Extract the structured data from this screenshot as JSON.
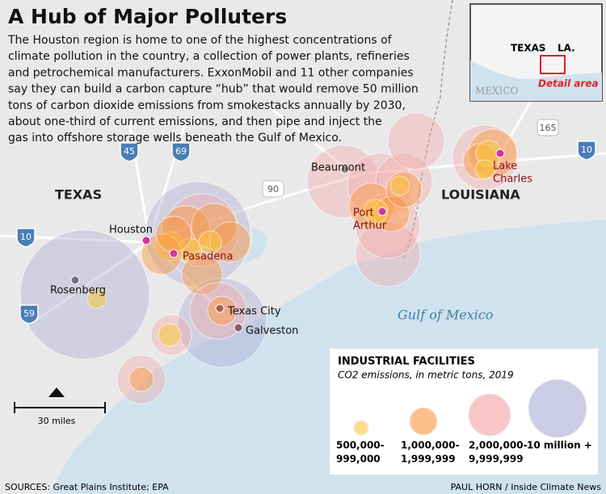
{
  "header": {
    "title": "A Hub of Major Polluters",
    "description": [
      "The Houston region is home to one of the highest concentrations of",
      "climate pollution in the country, a collection of power plants, refineries",
      "and petrochemical manufacturers. ExxonMobil and 11 other companies",
      "say they can build a carbon capture “hub” that would remove 50 million",
      "tons of carbon dioxide emissions from smokestacks annually by 2030,",
      "about one-third of current emissions, and then pipe and inject the",
      "gas into offshore storage wells beneath the Gulf of Mexico."
    ]
  },
  "map": {
    "regions": [
      "TEXAS",
      "LOUISIANA"
    ],
    "water": "Gulf of Mexico",
    "places": [
      {
        "label": [
          "Houston"
        ]
      },
      {
        "label": [
          "Pasadena"
        ]
      },
      {
        "label": [
          "Rosenberg"
        ]
      },
      {
        "label": [
          "Texas City"
        ]
      },
      {
        "label": [
          "Galveston"
        ]
      },
      {
        "label": [
          "Beaumont"
        ]
      },
      {
        "label": [
          "Port",
          "Arthur"
        ]
      },
      {
        "label": [
          "Lake",
          "Charles"
        ]
      }
    ],
    "highways": [
      "45",
      "69",
      "10",
      "59",
      "90",
      "165",
      "10"
    ],
    "scale": "30 miles"
  },
  "inset": {
    "labels": [
      "TEXAS",
      "LA.",
      "MEXICO"
    ],
    "detail": "Detail area"
  },
  "legend": {
    "title": "INDUSTRIAL FACILITIES",
    "subtitle": "CO2 emissions, in metric tons, 2019",
    "items": [
      {
        "label": [
          "500,000-",
          "999,000"
        ]
      },
      {
        "label": [
          "1,000,000-",
          "1,999,999"
        ]
      },
      {
        "label": [
          "2,000,000-",
          "9,999,999"
        ]
      },
      {
        "label": [
          "10 million +"
        ]
      }
    ]
  },
  "footer": {
    "sources": "SOURCES: Great Plains Institute; EPA",
    "credit": "PAUL HORN / Inside Climate News"
  }
}
